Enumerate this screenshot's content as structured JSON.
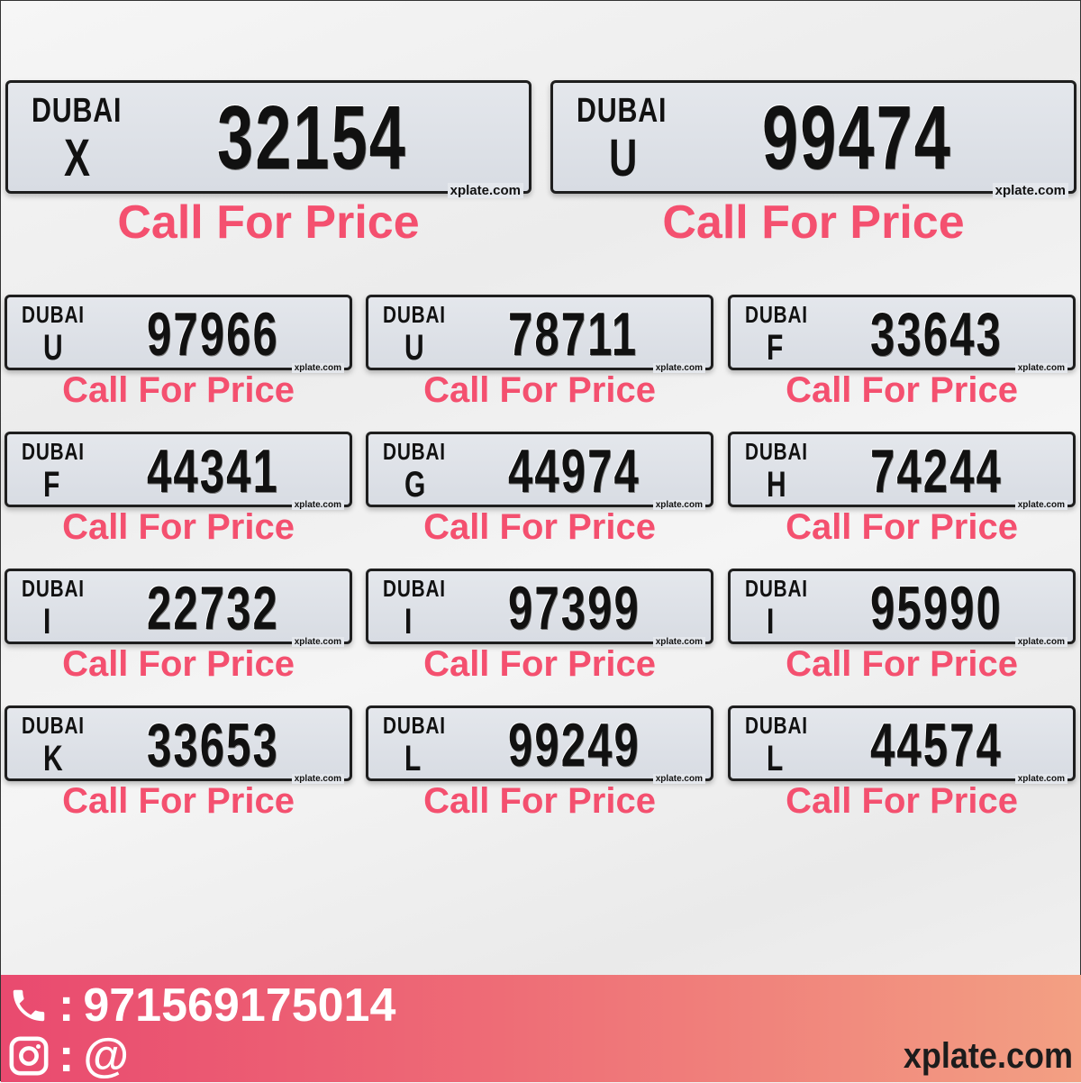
{
  "featured": [
    {
      "emirate": "DUBAI",
      "code": "X",
      "number": "32154",
      "site": "xplate.com",
      "price": "Call For Price"
    },
    {
      "emirate": "DUBAI",
      "code": "U",
      "number": "99474",
      "site": "xplate.com",
      "price": "Call For Price"
    }
  ],
  "plates": [
    {
      "emirate": "DUBAI",
      "code": "U",
      "number": "97966",
      "site": "xplate.com",
      "price": "Call For Price"
    },
    {
      "emirate": "DUBAI",
      "code": "U",
      "number": "78711",
      "site": "xplate.com",
      "price": "Call For Price"
    },
    {
      "emirate": "DUBAI",
      "code": "F",
      "number": "33643",
      "site": "xplate.com",
      "price": "Call For Price"
    },
    {
      "emirate": "DUBAI",
      "code": "F",
      "number": "44341",
      "site": "xplate.com",
      "price": "Call For Price"
    },
    {
      "emirate": "DUBAI",
      "code": "G",
      "number": "44974",
      "site": "xplate.com",
      "price": "Call For Price"
    },
    {
      "emirate": "DUBAI",
      "code": "H",
      "number": "74244",
      "site": "xplate.com",
      "price": "Call For Price"
    },
    {
      "emirate": "DUBAI",
      "code": "I",
      "number": "22732",
      "site": "xplate.com",
      "price": "Call For Price"
    },
    {
      "emirate": "DUBAI",
      "code": "I",
      "number": "97399",
      "site": "xplate.com",
      "price": "Call For Price"
    },
    {
      "emirate": "DUBAI",
      "code": "I",
      "number": "95990",
      "site": "xplate.com",
      "price": "Call For Price"
    },
    {
      "emirate": "DUBAI",
      "code": "K",
      "number": "33653",
      "site": "xplate.com",
      "price": "Call For Price"
    },
    {
      "emirate": "DUBAI",
      "code": "L",
      "number": "99249",
      "site": "xplate.com",
      "price": "Call For Price"
    },
    {
      "emirate": "DUBAI",
      "code": "L",
      "number": "44574",
      "site": "xplate.com",
      "price": "Call For Price"
    }
  ],
  "footer": {
    "phone_icon": "phone-icon",
    "phone": "971569175014",
    "instagram_icon": "instagram-icon",
    "instagram": "@",
    "separator": ":",
    "brand": "xplate.com"
  },
  "colors": {
    "price": "#f4506f",
    "footer_start": "#e94a6f",
    "footer_end": "#f3a083"
  }
}
